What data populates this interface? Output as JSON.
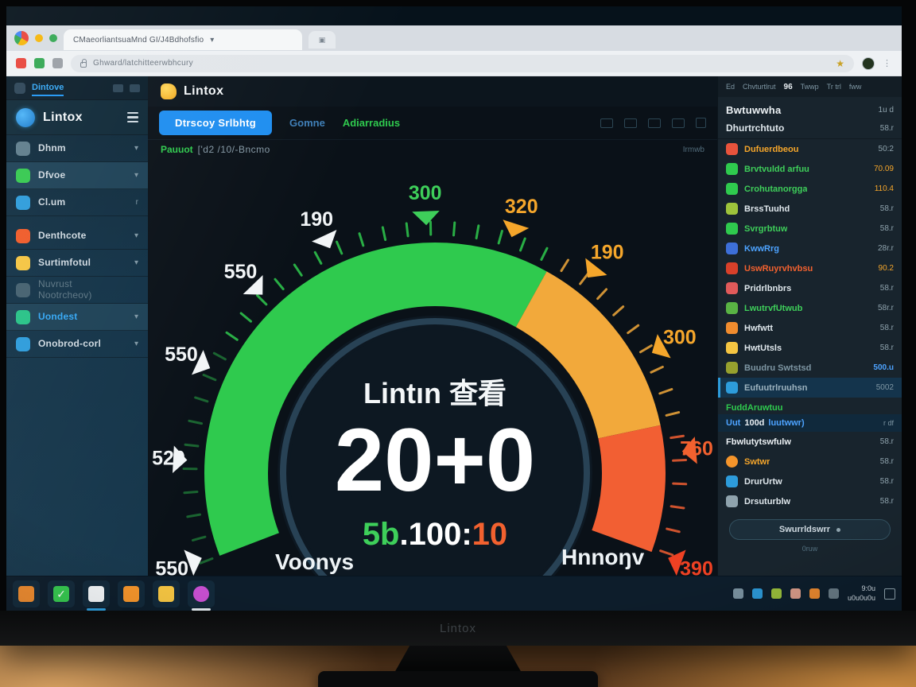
{
  "browser": {
    "tab_title": "CMaeorliantsuaMnd GI/J4Bdhofsfio",
    "url": "Ghward/latchitteerwbhcury",
    "window_dots": [
      "#f6b60a",
      "#34a853"
    ],
    "ext_icons": [
      "#e8453c",
      "#34a853",
      "#9aa0a6"
    ]
  },
  "sidebar": {
    "top_tab": "Dintove",
    "brand": "Lintox",
    "items": [
      {
        "label": "Dhnm",
        "icon_color": "#5f7d8c",
        "chevron": "▾",
        "active": false,
        "dim": false
      },
      {
        "label": "Dfvoe",
        "icon_color": "#35c94f",
        "chevron": "▾",
        "active": true,
        "dim": false
      },
      {
        "label": "Cl.um",
        "icon_color": "#2d9cdb",
        "chevron": "r",
        "active": false,
        "dim": false
      },
      {
        "label": "Denthcote",
        "icon_color": "#f05a28",
        "chevron": "▾",
        "active": false,
        "dim": false,
        "gap_before": true
      },
      {
        "label": "Surtimfotul",
        "icon_color": "#f5c542",
        "chevron": "▾",
        "active": false,
        "dim": false
      },
      {
        "label": "Nuvrust",
        "label2": "Nootrcheov)",
        "icon_color": "#44606f",
        "chevron": "",
        "active": false,
        "dim": true
      },
      {
        "label": "Uondest",
        "icon_color": "#27c287",
        "chevron": "▾",
        "active": true,
        "dim": false,
        "blue_text": true
      },
      {
        "label": "Onobrod-corl",
        "icon_color": "#2d9cdb",
        "chevron": "▾",
        "active": false,
        "dim": false
      }
    ]
  },
  "main": {
    "title": "Lintox",
    "tabs": [
      {
        "label": "Dtrscoy Srlbhtg",
        "style": "primary"
      },
      {
        "label": "Gomne",
        "style": "blue"
      },
      {
        "label": "Adiarradius",
        "style": "green"
      }
    ],
    "subtitle_accent": "Pauuot",
    "subtitle_rest": "['d2 /10/-Bncmo",
    "watermark": "Irmwb",
    "toolbar_icon_names": [
      "image-icon",
      "list-icon",
      "print-icon",
      "share-icon",
      "grid-icon"
    ]
  },
  "chart_data": {
    "type": "gauge",
    "title": "Lintın 查看",
    "value": "20+0",
    "sub_value": {
      "left": "5b",
      "mid": ".100:",
      "right": "10"
    },
    "sub_colors": {
      "left": "#3ecf5a",
      "mid": "#ffffff",
      "right": "#f2612f"
    },
    "angle_start": 201,
    "angle_end": -20,
    "tick_step": 5.5,
    "segments": [
      {
        "from": 201,
        "to": 61,
        "color": "#2fca4e"
      },
      {
        "from": 61,
        "to": 12,
        "color": "#f2a93b"
      },
      {
        "from": 12,
        "to": -20,
        "color": "#f25f33"
      }
    ],
    "labels": [
      {
        "text": "550",
        "angle": 200,
        "color": "#f2f5f7"
      },
      {
        "text": "520",
        "angle": 177,
        "color": "#f2f5f7"
      },
      {
        "text": "550",
        "angle": 155,
        "color": "#f2f5f7"
      },
      {
        "text": "550",
        "angle": 134,
        "color": "#f2f5f7"
      },
      {
        "text": "190",
        "angle": 115,
        "color": "#f2f5f7"
      },
      {
        "text": "300",
        "angle": 92,
        "color": "#3ecf5a"
      },
      {
        "text": "320",
        "angle": 72,
        "color": "#f5a62b"
      },
      {
        "text": "190",
        "angle": 52,
        "color": "#f5a62b"
      },
      {
        "text": "300",
        "angle": 29,
        "color": "#f5a62b"
      },
      {
        "text": "760",
        "angle": 5,
        "color": "#f2612f"
      },
      {
        "text": "390",
        "angle": -20,
        "color": "#ef4123"
      }
    ],
    "bottom_left_label": "Voonys",
    "bottom_right_label": "Hnnoŋv"
  },
  "right_panel": {
    "nav": [
      "Ed",
      "Chvturtlrut",
      "96",
      "Twwp",
      "Tr trl",
      "fww"
    ],
    "header": "Bwtuwwha",
    "header_value": "1u d",
    "subheader": "Dhurtrchtuto",
    "subheader_value": "58.r",
    "rows": [
      {
        "label": "Dufuerdbeou",
        "label_color": "#f5a62b",
        "icon_color": "#e8533c",
        "value": "50:2",
        "value_color": "#8fa3ad"
      },
      {
        "label": "Brvtvuldd arfuu",
        "label_color": "#3ecf5a",
        "icon_color": "#2fca4e",
        "value": "70.09",
        "value_color": "#f5a62b"
      },
      {
        "label": "Crohutanorgga",
        "label_color": "#3ecf5a",
        "icon_color": "#2fca4e",
        "value": "110.4",
        "value_color": "#f5a62b"
      },
      {
        "label": "BrssTuuhd",
        "label_color": "#dfe7ec",
        "icon_color": "#9ec43b",
        "value": "58.r",
        "value_color": "#8fa3ad"
      },
      {
        "label": "Svrgrbtuw",
        "label_color": "#3ecf5a",
        "icon_color": "#2fca4e",
        "value": "58.r",
        "value_color": "#8fa3ad"
      },
      {
        "label": "KwwRrg",
        "label_color": "#4da3ff",
        "icon_color": "#3d6fd8",
        "value": "28r.r",
        "value_color": "#8fa3ad"
      },
      {
        "label": "UswRuyrvhvbsu",
        "label_color": "#f2612f",
        "icon_color": "#d8402a",
        "value": "90.2",
        "value_color": "#f5a62b"
      },
      {
        "label": "Pridrlbnbrs",
        "label_color": "#dfe7ec",
        "icon_color": "#e05a5a",
        "value": "58.r",
        "value_color": "#8fa3ad"
      },
      {
        "label": "LwutrvfUtwub",
        "label_color": "#3ecf5a",
        "icon_color": "#59b344",
        "value": "58r.r",
        "value_color": "#8fa3ad"
      },
      {
        "label": "Hwfwtt",
        "label_color": "#dfe7ec",
        "icon_color": "#f08c2e",
        "value": "58.r",
        "value_color": "#8fa3ad"
      },
      {
        "label": "HwtUtsls",
        "label_color": "#dfe7ec",
        "icon_color": "#f5c542",
        "value": "58.r",
        "value_color": "#8fa3ad"
      },
      {
        "label": "Buudru Swtstsd",
        "label_color": "#7e96a3",
        "icon_color": "#97a12e",
        "value": "500.u",
        "value_color": "#4da3ff",
        "value_bold": true
      },
      {
        "label": "Eufuutrlruuhsn",
        "label_color": "#9db3bf",
        "icon_color": "#2d9cdb",
        "value": "5002",
        "value_color": "#7e96a3",
        "highlight": true
      }
    ],
    "section2_heading": "FuddAruwtuu",
    "feed_row": {
      "pre": "Uut",
      "bold": "100d",
      "post": "luutwwr)",
      "value": "r df"
    },
    "rows2": [
      {
        "label": "Fbwlutytswfulw",
        "bold": true,
        "value": "58.r"
      },
      {
        "label": "Swtwr",
        "icon_color": "#f5952b",
        "round": true,
        "label_color": "#f5a62b",
        "value": "58.r"
      },
      {
        "label": "DrurUrtw",
        "icon_color": "#2d9cdb",
        "label_color": "#dfe7ec",
        "value": "58.r"
      },
      {
        "label": "Drsuturblw",
        "icon_color": "#8fa3ad",
        "label_color": "#dfe7ec",
        "value": "58.r"
      }
    ],
    "button_label": "Swurrldswrr",
    "footnote": "0ruw"
  },
  "taskbar": {
    "left_icons": [
      {
        "name": "app-orange-blue-icon",
        "color": "#f08c2e",
        "open": false
      },
      {
        "name": "check-green-icon",
        "color": "#35c94f",
        "open": false,
        "glyph": "✓"
      },
      {
        "name": "folder-white-icon",
        "color": "#f2f5f7",
        "open": true
      },
      {
        "name": "gradient-orange-icon",
        "color": "#f5952b",
        "open": false
      },
      {
        "name": "note-yellow-icon",
        "color": "#f5c542",
        "open": false
      },
      {
        "name": "circle-purple-icon",
        "color": "#c74fd1",
        "open": true,
        "white_bar": true,
        "round": true
      }
    ],
    "tray_icons": [
      {
        "name": "arrow-up-icon",
        "color": "#7e96a3"
      },
      {
        "name": "chat-blue-icon",
        "color": "#2d9cdb"
      },
      {
        "name": "drive-icon",
        "color": "#9ec43b"
      },
      {
        "name": "dot-pink-icon",
        "color": "#e0a08c"
      },
      {
        "name": "folder-tray-icon",
        "color": "#f08c2e"
      },
      {
        "name": "cloud-icon",
        "color": "#6b7d88"
      }
    ],
    "clock_line1": "9:0u",
    "clock_line2": "u0u0u0u"
  },
  "bezel": {
    "logo": "Lintox"
  }
}
